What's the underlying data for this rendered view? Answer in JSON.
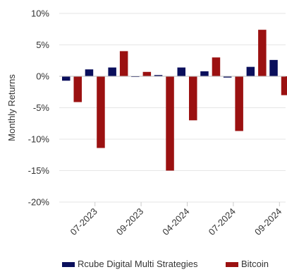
{
  "chart_data": {
    "type": "bar",
    "ylabel": "Monthly Returns",
    "xlabel": "",
    "ylim": [
      -20,
      10
    ],
    "y_ticks": [
      10,
      5,
      0,
      -5,
      -10,
      -15,
      -20
    ],
    "y_tick_suffix": "%",
    "grid": true,
    "legend_position": "bottom",
    "x_tick_labels": [
      {
        "label": "07-2023",
        "at": 1
      },
      {
        "label": "09-2023",
        "at": 3
      },
      {
        "label": "04-2024",
        "at": 5
      },
      {
        "label": "07-2024",
        "at": 7
      },
      {
        "label": "09-2024",
        "at": 9
      }
    ],
    "series": [
      {
        "name": "Rcube Digital Multi Strategies",
        "color": "#0a0f5c",
        "values": [
          -0.7,
          1.1,
          1.4,
          -0.1,
          0.2,
          1.4,
          0.8,
          -0.2,
          1.5,
          2.6
        ]
      },
      {
        "name": "Bitcoin",
        "color": "#9b1111",
        "values": [
          -4.1,
          -11.4,
          4.0,
          0.7,
          -15.0,
          -7.0,
          3.0,
          -8.7,
          7.4,
          -3.0
        ]
      }
    ]
  }
}
